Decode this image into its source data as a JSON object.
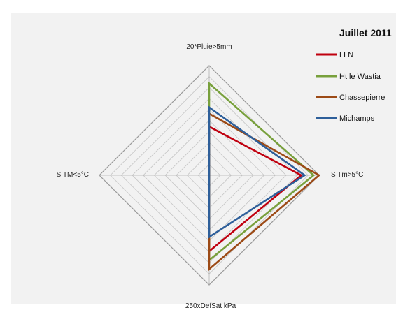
{
  "chart_data": {
    "type": "radar",
    "title": "Juillet  2011",
    "axes": [
      "20*Pluie>5mm",
      "S Tm>5°C",
      "250xDefSat kPa",
      "S TM<5°C"
    ],
    "rmax": 160,
    "rings": 10,
    "grid": true,
    "legend_position": "top-right",
    "series": [
      {
        "name": "LLN",
        "color": "#c0000f",
        "values": [
          71,
          134,
          111,
          0
        ]
      },
      {
        "name": "Ht le Wastia",
        "color": "#78a03c",
        "values": [
          134,
          152,
          124,
          0
        ]
      },
      {
        "name": "Chassepierre",
        "color": "#9c4a16",
        "values": [
          90,
          160,
          137,
          0
        ]
      },
      {
        "name": "Michamps",
        "color": "#2e5f9a",
        "values": [
          99,
          139,
          90,
          0
        ]
      }
    ]
  }
}
